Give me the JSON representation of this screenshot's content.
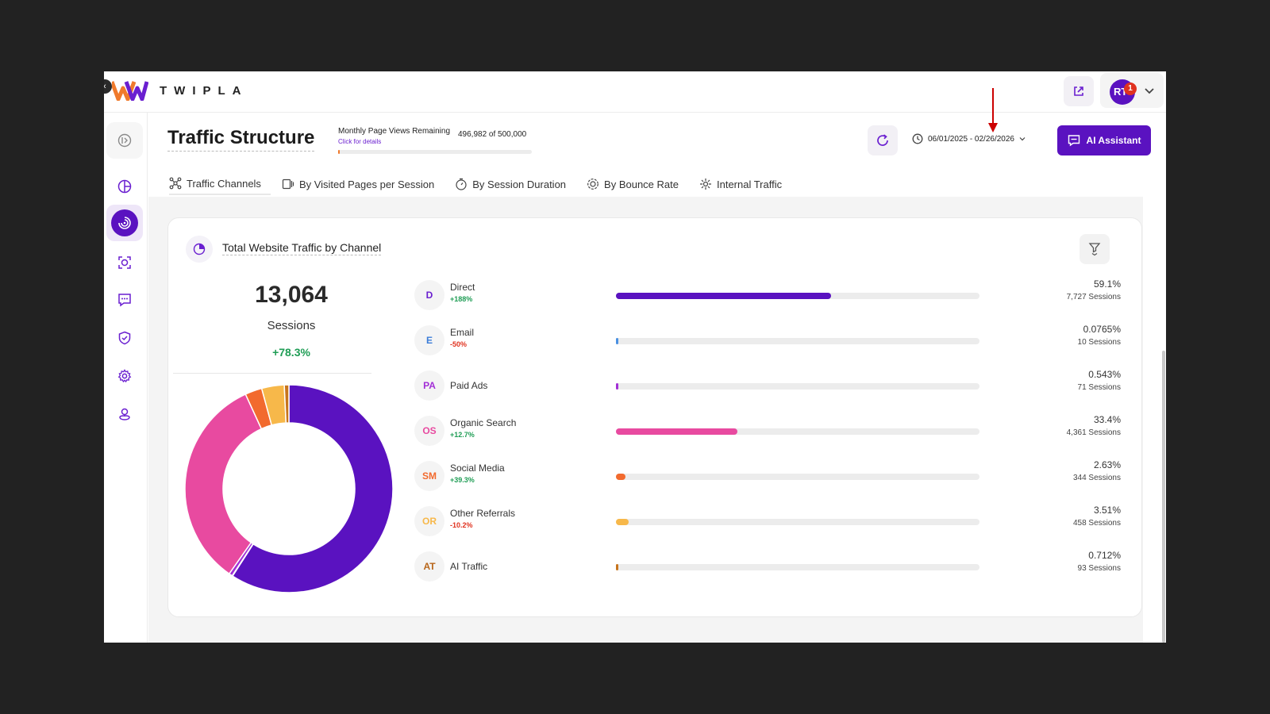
{
  "app": {
    "logo_text": "TWIPLA",
    "user_initials": "RT",
    "notification_count": "1"
  },
  "sidebar": {
    "items": [
      {
        "name": "sidebar-item-expand",
        "icon": "expand-icon"
      },
      {
        "name": "sidebar-item-dashboard",
        "icon": "pie-chart-icon"
      },
      {
        "name": "sidebar-item-traffic",
        "icon": "traffic-spiral-icon"
      },
      {
        "name": "sidebar-item-recordings",
        "icon": "camera-focus-icon"
      },
      {
        "name": "sidebar-item-feedback",
        "icon": "chat-icon"
      },
      {
        "name": "sidebar-item-security",
        "icon": "shield-check-icon"
      },
      {
        "name": "sidebar-item-settings",
        "icon": "gear-icon"
      },
      {
        "name": "sidebar-item-location",
        "icon": "map-pin-user-icon"
      }
    ]
  },
  "header": {
    "title": "Traffic Structure",
    "page_views_label": "Monthly Page Views Remaining",
    "page_views_value": "496,982 of 500,000",
    "page_views_link": "Click for details",
    "page_views_used_fraction": 0.006,
    "date_range": "06/01/2025 - 02/26/2026",
    "ai_button_label": "AI Assistant"
  },
  "tabs": [
    {
      "label": "Traffic Channels",
      "icon": "channels-icon",
      "active": true
    },
    {
      "label": "By Visited Pages per Session",
      "icon": "pages-icon",
      "active": false
    },
    {
      "label": "By Session Duration",
      "icon": "timer-icon",
      "active": false
    },
    {
      "label": "By Bounce Rate",
      "icon": "bounce-icon",
      "active": false
    },
    {
      "label": "Internal Traffic",
      "icon": "internal-icon",
      "active": false
    }
  ],
  "card": {
    "title": "Total Website Traffic by Channel",
    "total_sessions": "13,064",
    "sessions_label": "Sessions",
    "sessions_change": "+78.3%"
  },
  "channels": [
    {
      "abbr": "D",
      "name": "Direct",
      "change": "+188%",
      "change_color": "#1f9d55",
      "percent": "59.1%",
      "sessions": "7,727 Sessions",
      "share": 0.591,
      "color": "#5a12c0",
      "badge_color": "#6a1fd0"
    },
    {
      "abbr": "E",
      "name": "Email",
      "change": "-50%",
      "change_color": "#e0321f",
      "percent": "0.0765%",
      "sessions": "10 Sessions",
      "share": 0.000765,
      "color": "#4a90e2",
      "badge_color": "#3b7dd8"
    },
    {
      "abbr": "PA",
      "name": "Paid Ads",
      "change": "",
      "change_color": "#1f9d55",
      "percent": "0.543%",
      "sessions": "71 Sessions",
      "share": 0.00543,
      "color": "#a22fd6",
      "badge_color": "#a22fd6"
    },
    {
      "abbr": "OS",
      "name": "Organic Search",
      "change": "+12.7%",
      "change_color": "#1f9d55",
      "percent": "33.4%",
      "sessions": "4,361 Sessions",
      "share": 0.334,
      "color": "#e84aa0",
      "badge_color": "#e84aa0"
    },
    {
      "abbr": "SM",
      "name": "Social Media",
      "change": "+39.3%",
      "change_color": "#1f9d55",
      "percent": "2.63%",
      "sessions": "344 Sessions",
      "share": 0.0263,
      "color": "#f26a2e",
      "badge_color": "#f26a2e"
    },
    {
      "abbr": "OR",
      "name": "Other Referrals",
      "change": "-10.2%",
      "change_color": "#e0321f",
      "percent": "3.51%",
      "sessions": "458 Sessions",
      "share": 0.0351,
      "color": "#f7b84a",
      "badge_color": "#f7b84a"
    },
    {
      "abbr": "AT",
      "name": "AI Traffic",
      "change": "",
      "change_color": "#1f9d55",
      "percent": "0.712%",
      "sessions": "93 Sessions",
      "share": 0.00712,
      "color": "#c7741c",
      "badge_color": "#b8661a"
    }
  ]
}
